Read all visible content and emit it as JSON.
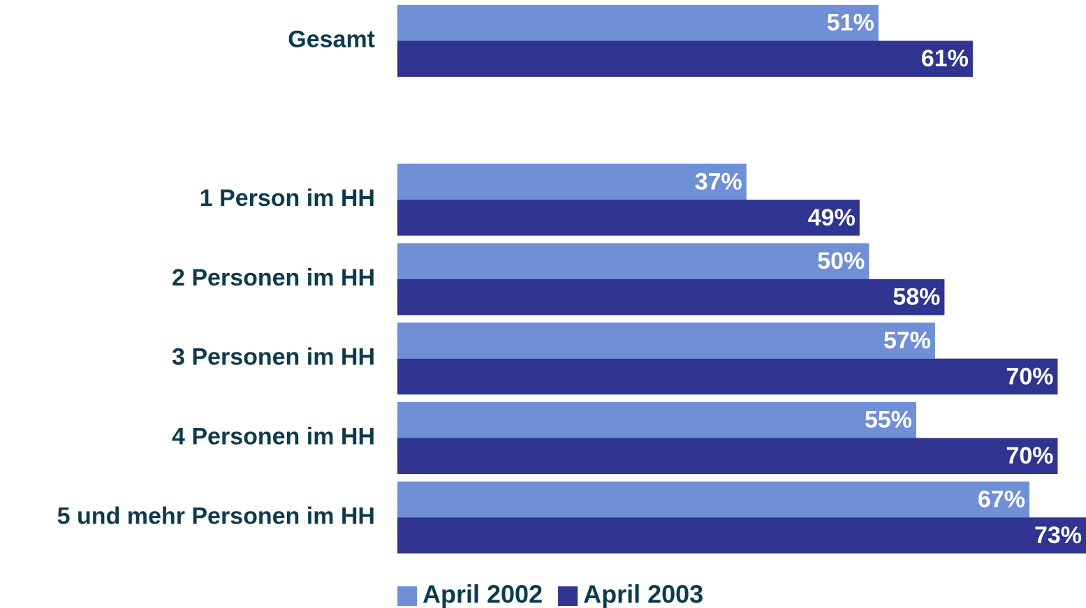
{
  "chart_data": {
    "type": "bar",
    "orientation": "horizontal",
    "categories": [
      "Gesamt",
      null,
      "1 Person im HH",
      "2 Personen im HH",
      "3 Personen im HH",
      "4 Personen im HH",
      "5 und mehr Personen im HH"
    ],
    "series": [
      {
        "name": "April 2002",
        "color": "#6f8fd6",
        "values": [
          51,
          null,
          37,
          50,
          57,
          55,
          67
        ],
        "value_labels": [
          "51%",
          null,
          "37%",
          "50%",
          "57%",
          "55%",
          "67%"
        ]
      },
      {
        "name": "April 2003",
        "color": "#2e348f",
        "values": [
          61,
          null,
          49,
          58,
          70,
          70,
          73
        ],
        "value_labels": [
          "61%",
          null,
          "49%",
          "58%",
          "70%",
          "70%",
          "73%"
        ]
      }
    ],
    "xlim": [
      0,
      73
    ]
  }
}
